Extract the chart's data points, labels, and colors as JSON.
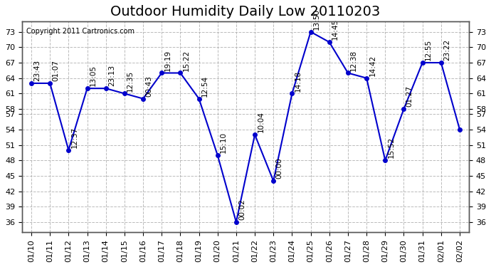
{
  "title": "Outdoor Humidity Daily Low 20110203",
  "copyright": "Copyright 2011 Cartronics.com",
  "x_labels": [
    "01/10",
    "01/11",
    "01/12",
    "01/13",
    "01/14",
    "01/15",
    "01/16",
    "01/17",
    "01/18",
    "01/19",
    "01/20",
    "01/21",
    "01/22",
    "01/23",
    "01/24",
    "01/25",
    "01/26",
    "01/27",
    "01/28",
    "01/29",
    "01/30",
    "01/31",
    "02/01",
    "02/02"
  ],
  "y_values": [
    63,
    63,
    50,
    62,
    62,
    61,
    60,
    65,
    65,
    60,
    49,
    36,
    53,
    44,
    61,
    73,
    71,
    65,
    64,
    48,
    58,
    67,
    67,
    54
  ],
  "point_labels": [
    "23:43",
    "01:07",
    "12:37",
    "13:05",
    "23:13",
    "12:35",
    "00:43",
    "19:19",
    "15:22",
    "12:54",
    "15:10",
    "00:02",
    "10:04",
    "00:00",
    "14:18",
    "13:50",
    "14:45",
    "12:38",
    "14:42",
    "15:52",
    "01:27",
    "12:55",
    "23:22",
    ""
  ],
  "line_color": "#0000cc",
  "marker_color": "#0000cc",
  "bg_color": "#ffffff",
  "grid_color": "#aaaaaa",
  "ylim": [
    36,
    73
  ],
  "yticks": [
    36,
    39,
    42,
    45,
    48,
    51,
    54,
    57,
    58,
    61,
    64,
    67,
    70,
    73
  ],
  "title_fontsize": 14,
  "label_fontsize": 7.5
}
